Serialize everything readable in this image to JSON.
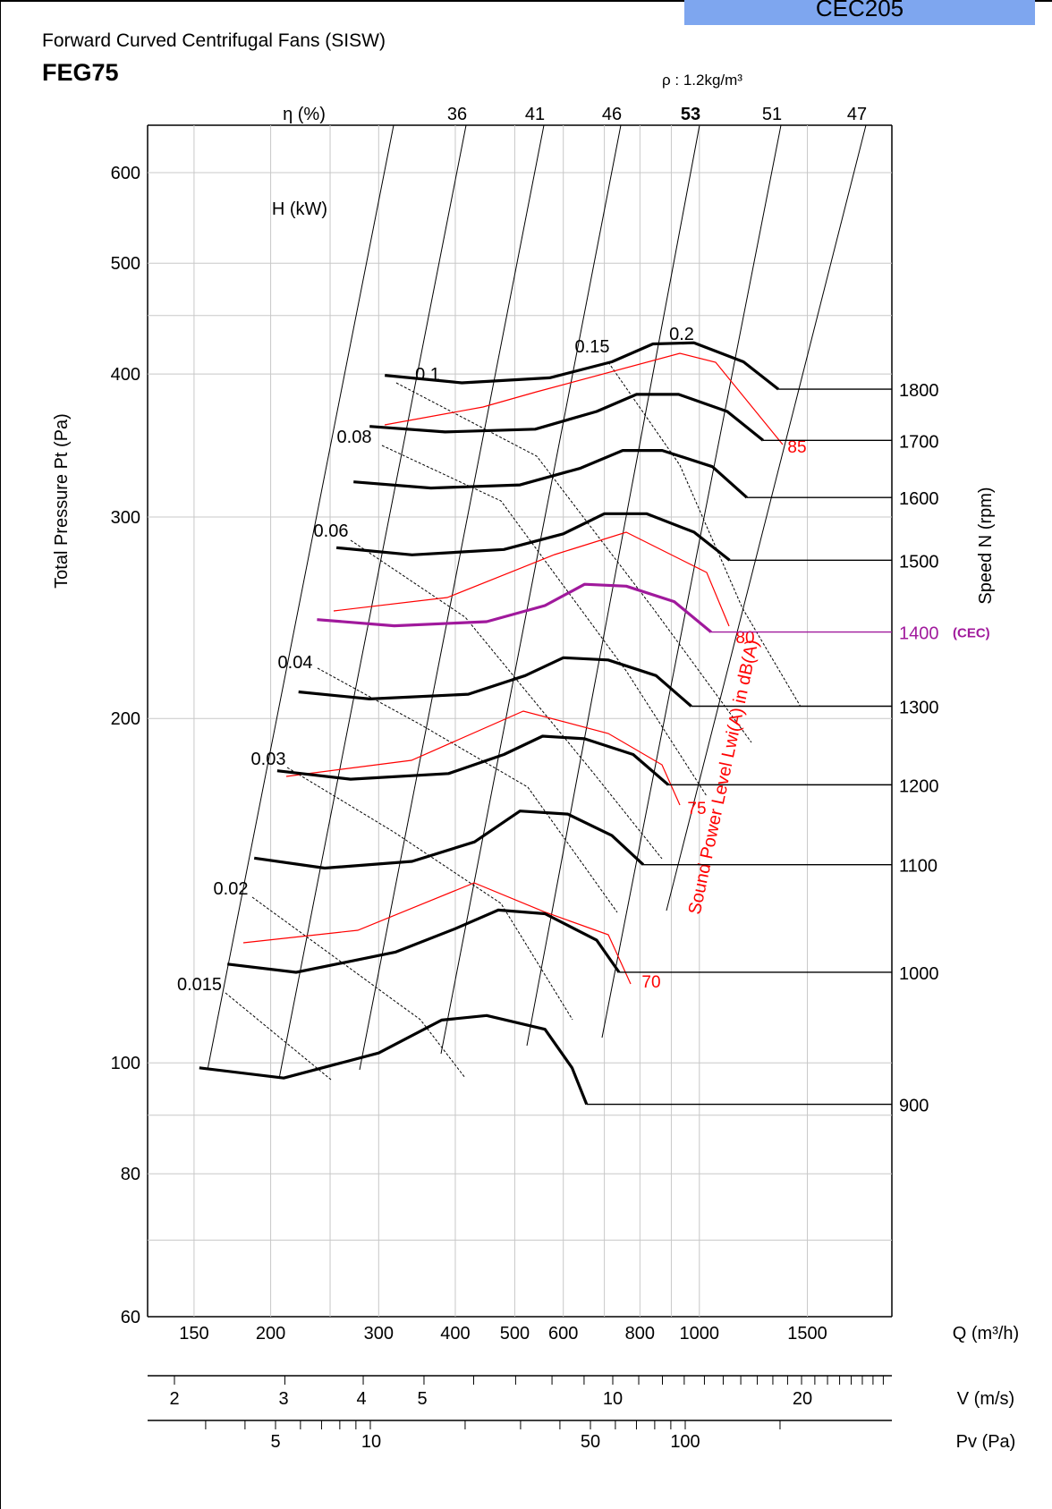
{
  "header": {
    "tag": "CEC205",
    "subtitle": "Forward Curved Centrifugal Fans (SISW)",
    "model": "FEG75",
    "density": "ρ : 1.2kg/m³"
  },
  "colors": {
    "curve": "#000000",
    "sound": "#ff0000",
    "cec": "#a0199c",
    "tag": "#7ea6ef",
    "grid": "#c8c8c8"
  },
  "chart_data": {
    "type": "line",
    "title": "FEG75",
    "x_axis": {
      "label": "Q (m³/h)",
      "scale": "log",
      "ticks": [
        "150",
        "200",
        "300",
        "400",
        "500",
        "600",
        "800",
        "1000",
        "1500"
      ]
    },
    "y_axis": {
      "label": "Total Pressure Pt (Pa)",
      "scale": "log",
      "ticks": [
        "60",
        "80",
        "100",
        "200",
        "300",
        "400",
        "500",
        "600"
      ]
    },
    "velocity_axis": {
      "label": "V (m/s)",
      "ticks": [
        "2",
        "3",
        "4",
        "5",
        "10",
        "20"
      ]
    },
    "dynamic_pressure_axis": {
      "label": "Pv (Pa)",
      "ticks": [
        "5",
        "10",
        "50",
        "100"
      ]
    },
    "efficiency": {
      "label": "η (%)",
      "values": [
        "36",
        "41",
        "46",
        "53",
        "51",
        "47"
      ],
      "peak": "53"
    },
    "power": {
      "label": "H (kW)",
      "values": [
        "0.015",
        "0.02",
        "0.03",
        "0.04",
        "0.06",
        "0.08",
        "0.1",
        "0.15",
        "0.2"
      ]
    },
    "sound": {
      "label": "Sound Power Level Lwi(A) in dB(A)",
      "values": [
        "70",
        "75",
        "80",
        "85"
      ]
    },
    "speed_axis": {
      "label": "Speed N (rpm)",
      "cec_label": "(CEC)",
      "cec_speed": "1400"
    },
    "series": [
      {
        "name": "900",
        "points": [
          [
            153,
            99
          ],
          [
            210,
            97
          ],
          [
            300,
            102
          ],
          [
            380,
            109
          ],
          [
            450,
            110
          ],
          [
            560,
            107
          ],
          [
            620,
            99
          ],
          [
            655,
            92
          ]
        ]
      },
      {
        "name": "1000",
        "points": [
          [
            170,
            122
          ],
          [
            220,
            120
          ],
          [
            320,
            125
          ],
          [
            400,
            131
          ],
          [
            470,
            136
          ],
          [
            560,
            135
          ],
          [
            680,
            128
          ],
          [
            740,
            120
          ]
        ]
      },
      {
        "name": "1100",
        "points": [
          [
            188,
            151
          ],
          [
            245,
            148
          ],
          [
            340,
            150
          ],
          [
            430,
            156
          ],
          [
            510,
            166
          ],
          [
            610,
            165
          ],
          [
            720,
            158
          ],
          [
            810,
            149
          ]
        ]
      },
      {
        "name": "1200",
        "points": [
          [
            205,
            180
          ],
          [
            270,
            177
          ],
          [
            390,
            179
          ],
          [
            480,
            186
          ],
          [
            555,
            193
          ],
          [
            650,
            192
          ],
          [
            780,
            186
          ],
          [
            890,
            175
          ]
        ]
      },
      {
        "name": "1300",
        "points": [
          [
            222,
            211
          ],
          [
            290,
            208
          ],
          [
            420,
            210
          ],
          [
            520,
            218
          ],
          [
            600,
            226
          ],
          [
            710,
            225
          ],
          [
            850,
            218
          ],
          [
            970,
            205
          ]
        ]
      },
      {
        "name": "1400 (CEC)",
        "points": [
          [
            238,
            244
          ],
          [
            318,
            241
          ],
          [
            450,
            243
          ],
          [
            560,
            251
          ],
          [
            650,
            262
          ],
          [
            760,
            261
          ],
          [
            910,
            253
          ],
          [
            1045,
            238
          ]
        ]
      },
      {
        "name": "1500",
        "points": [
          [
            256,
            282
          ],
          [
            340,
            278
          ],
          [
            480,
            281
          ],
          [
            600,
            290
          ],
          [
            700,
            302
          ],
          [
            820,
            302
          ],
          [
            980,
            291
          ],
          [
            1120,
            275
          ]
        ]
      },
      {
        "name": "1600",
        "points": [
          [
            273,
            322
          ],
          [
            365,
            318
          ],
          [
            510,
            320
          ],
          [
            640,
            331
          ],
          [
            750,
            343
          ],
          [
            870,
            343
          ],
          [
            1050,
            332
          ],
          [
            1195,
            312
          ]
        ]
      },
      {
        "name": "1700",
        "points": [
          [
            290,
            360
          ],
          [
            385,
            356
          ],
          [
            540,
            358
          ],
          [
            680,
            371
          ],
          [
            790,
            384
          ],
          [
            925,
            384
          ],
          [
            1110,
            371
          ],
          [
            1270,
            350
          ]
        ]
      },
      {
        "name": "1800",
        "points": [
          [
            307,
            399
          ],
          [
            410,
            393
          ],
          [
            570,
            397
          ],
          [
            720,
            410
          ],
          [
            840,
            425
          ],
          [
            980,
            426
          ],
          [
            1180,
            410
          ],
          [
            1345,
            388
          ]
        ]
      }
    ]
  }
}
